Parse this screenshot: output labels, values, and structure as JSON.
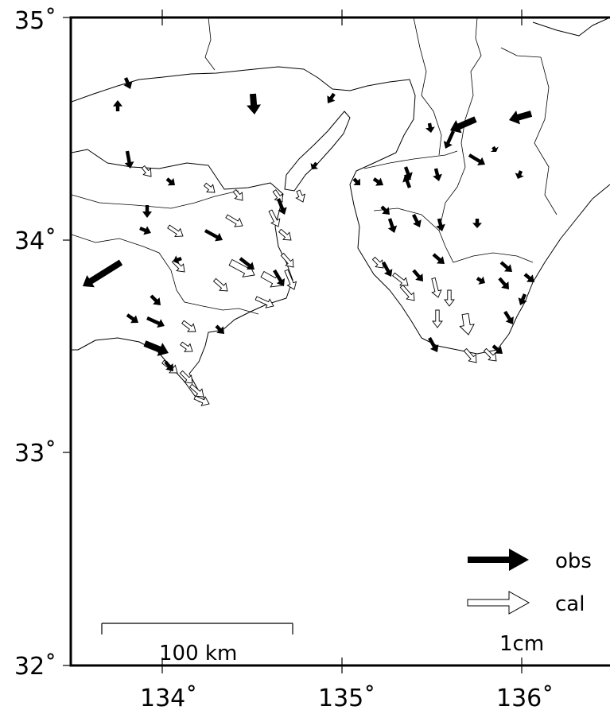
{
  "map": {
    "lat_labels": [
      "35˚",
      "34˚",
      "33˚",
      "32˚"
    ],
    "lon_labels": [
      "134˚",
      "135˚",
      "136˚"
    ],
    "lat_values": [
      35,
      34,
      33,
      32
    ],
    "lon_values": [
      134,
      135,
      136
    ],
    "lon_range": [
      133.5,
      136.5
    ],
    "lat_range": [
      32,
      35
    ]
  },
  "legend": {
    "obs_label": "obs",
    "cal_label": "cal",
    "scale_arrow_label": "1cm"
  },
  "scale_bar": {
    "label": "100 km",
    "length_km": 100
  },
  "colors": {
    "obs_arrow": "#000000",
    "cal_arrow": "#ffffff",
    "outline": "#000000",
    "background": "#ffffff"
  }
}
